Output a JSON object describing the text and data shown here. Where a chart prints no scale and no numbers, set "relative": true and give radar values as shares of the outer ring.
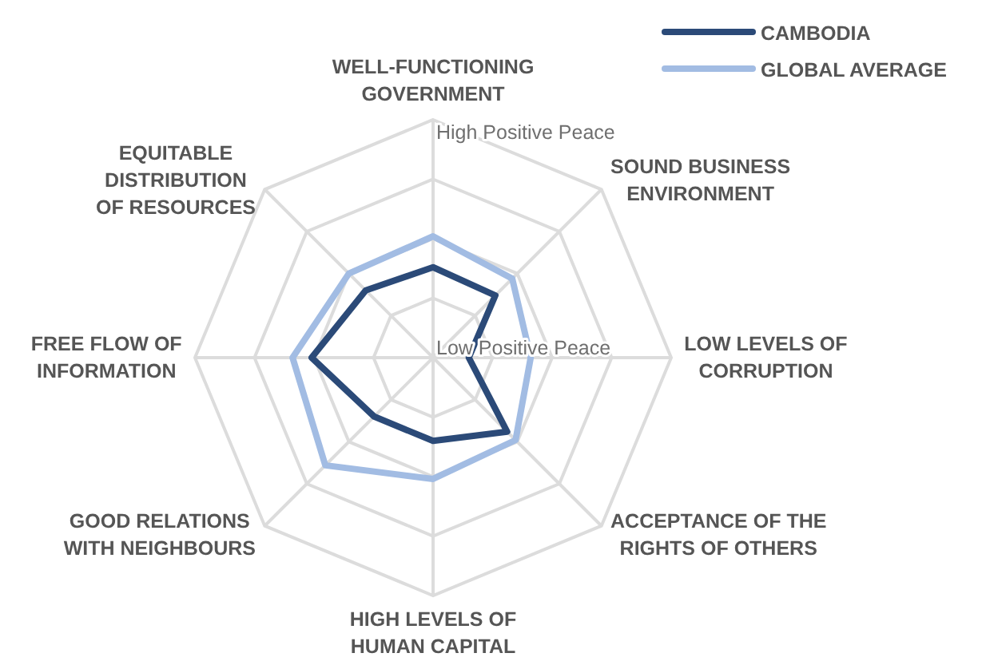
{
  "chart_data": {
    "type": "radar",
    "relative": true,
    "grid": true,
    "legend": "top right",
    "marker": "none",
    "categories": [
      "WELL-FUNCTIONING\nGOVERNMENT",
      "SOUND BUSINESS\nENVIRONMENT",
      "LOW LEVELS OF\nCORRUPTION",
      "ACCEPTANCE OF THE\nRIGHTS OF OTHERS",
      "HIGH LEVELS OF\nHUMAN CAPITAL",
      "GOOD RELATIONS\nWITH NEIGHBOURS",
      "FREE FLOW OF\nINFORMATION",
      "EQUITABLE\nDISTRIBUTION\nOF RESOURCES"
    ],
    "series": [
      {
        "name": "CAMBODIA",
        "color": "#2b4a78",
        "values": [
          0.38,
          0.37,
          0.15,
          0.44,
          0.35,
          0.35,
          0.51,
          0.4
        ]
      },
      {
        "name": "GLOBAL AVERAGE",
        "color": "#a2bce3",
        "values": [
          0.51,
          0.47,
          0.41,
          0.49,
          0.51,
          0.64,
          0.59,
          0.5
        ]
      }
    ],
    "annotations": [
      "High Positive Peace",
      "Low Positive Peace"
    ]
  }
}
